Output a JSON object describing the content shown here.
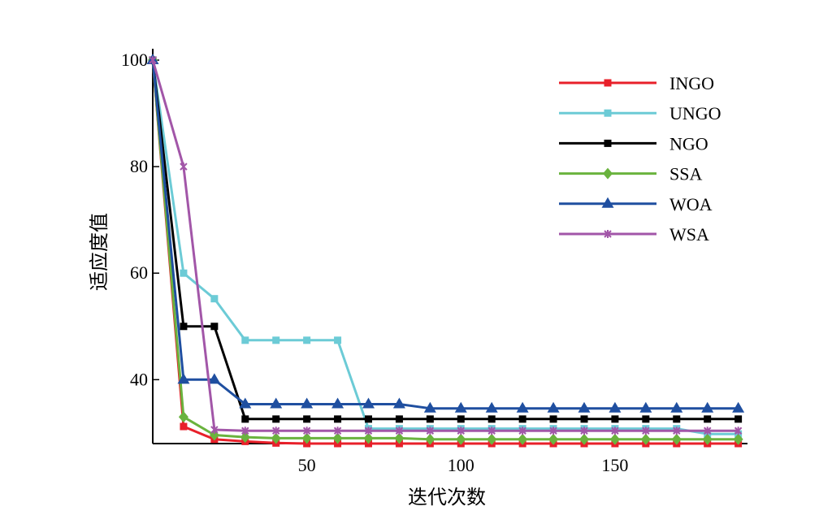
{
  "chart_data": {
    "type": "line",
    "xlabel": "迭代次数",
    "ylabel": "适应度值",
    "xlim": [
      0,
      193
    ],
    "ylim": [
      28,
      100
    ],
    "xticks": [
      50,
      100,
      150
    ],
    "yticks": [
      40,
      60,
      80,
      100
    ],
    "grid": false,
    "legend_position": "top-right",
    "x": [
      0,
      10,
      20,
      30,
      40,
      50,
      60,
      70,
      80,
      90,
      100,
      110,
      120,
      130,
      140,
      150,
      160,
      170,
      180,
      190
    ],
    "series": [
      {
        "name": "INGO",
        "color": "#e8202a",
        "marker": "square",
        "values": [
          100,
          31.2,
          28.8,
          28.4,
          28.1,
          28,
          28,
          28,
          28,
          28,
          28,
          28,
          28,
          28,
          28,
          28,
          28,
          28,
          28,
          28
        ]
      },
      {
        "name": "UNGO",
        "color": "#6ccbd6",
        "marker": "square",
        "values": [
          100,
          60,
          55.2,
          47.4,
          47.4,
          47.4,
          47.4,
          30.8,
          30.8,
          30.8,
          30.8,
          30.8,
          30.8,
          30.8,
          30.8,
          30.8,
          30.8,
          30.8,
          29.8,
          29.8
        ]
      },
      {
        "name": "NGO",
        "color": "#000000",
        "marker": "square",
        "values": [
          100,
          50,
          50,
          32.6,
          32.6,
          32.6,
          32.6,
          32.6,
          32.6,
          32.6,
          32.6,
          32.6,
          32.6,
          32.6,
          32.6,
          32.6,
          32.6,
          32.6,
          32.6,
          32.6
        ]
      },
      {
        "name": "SSA",
        "color": "#6ab33e",
        "marker": "diamond",
        "values": [
          100,
          33,
          29.6,
          29.2,
          29,
          29,
          29,
          29,
          29,
          28.8,
          28.8,
          28.8,
          28.8,
          28.8,
          28.8,
          28.8,
          28.8,
          28.8,
          28.8,
          28.8
        ]
      },
      {
        "name": "WOA",
        "color": "#1f4fa0",
        "marker": "triangle",
        "values": [
          100,
          40,
          40,
          35.4,
          35.4,
          35.4,
          35.4,
          35.4,
          35.4,
          34.6,
          34.6,
          34.6,
          34.6,
          34.6,
          34.6,
          34.6,
          34.6,
          34.6,
          34.6,
          34.6
        ]
      },
      {
        "name": "WSA",
        "color": "#a256a8",
        "marker": "star",
        "values": [
          100,
          80,
          30.6,
          30.4,
          30.4,
          30.4,
          30.4,
          30.4,
          30.4,
          30.4,
          30.4,
          30.4,
          30.4,
          30.4,
          30.4,
          30.4,
          30.4,
          30.4,
          30.4,
          30.4
        ]
      }
    ]
  }
}
